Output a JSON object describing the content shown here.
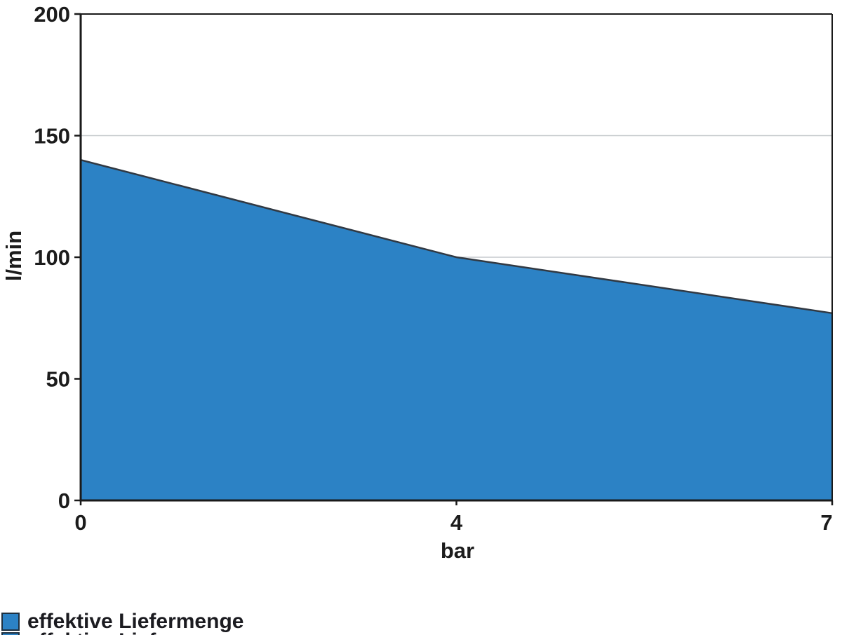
{
  "chart_data": {
    "type": "area",
    "x_categories": [
      "0",
      "4",
      "7"
    ],
    "x_numeric": [
      0,
      4,
      7
    ],
    "series": [
      {
        "name": "effektive Liefermenge",
        "values": [
          140,
          100,
          77
        ]
      }
    ],
    "xlabel": "bar",
    "ylabel": "l/min",
    "ylim": [
      0,
      200
    ],
    "yticks": [
      0,
      50,
      100,
      150,
      200
    ],
    "xticks": [
      0,
      4,
      7
    ],
    "x_spacing": "categories evenly spaced (4 at horizontal midpoint)",
    "grid": "horizontal gridlines at 50, 100, 150; full plot border box",
    "legend_position": "bottom-left, below plot"
  },
  "legend": {
    "label": "effektive Liefermenge",
    "second_row_clipped_at_bottom": true
  },
  "colors": {
    "background": "#ffffff",
    "area_fill": "#2C82C5",
    "area_line": "#313943",
    "axis": "#1a1a1a",
    "gridline": "#c6cacd",
    "text": "#1c1c1c",
    "swatch_border": "#1E3040"
  }
}
